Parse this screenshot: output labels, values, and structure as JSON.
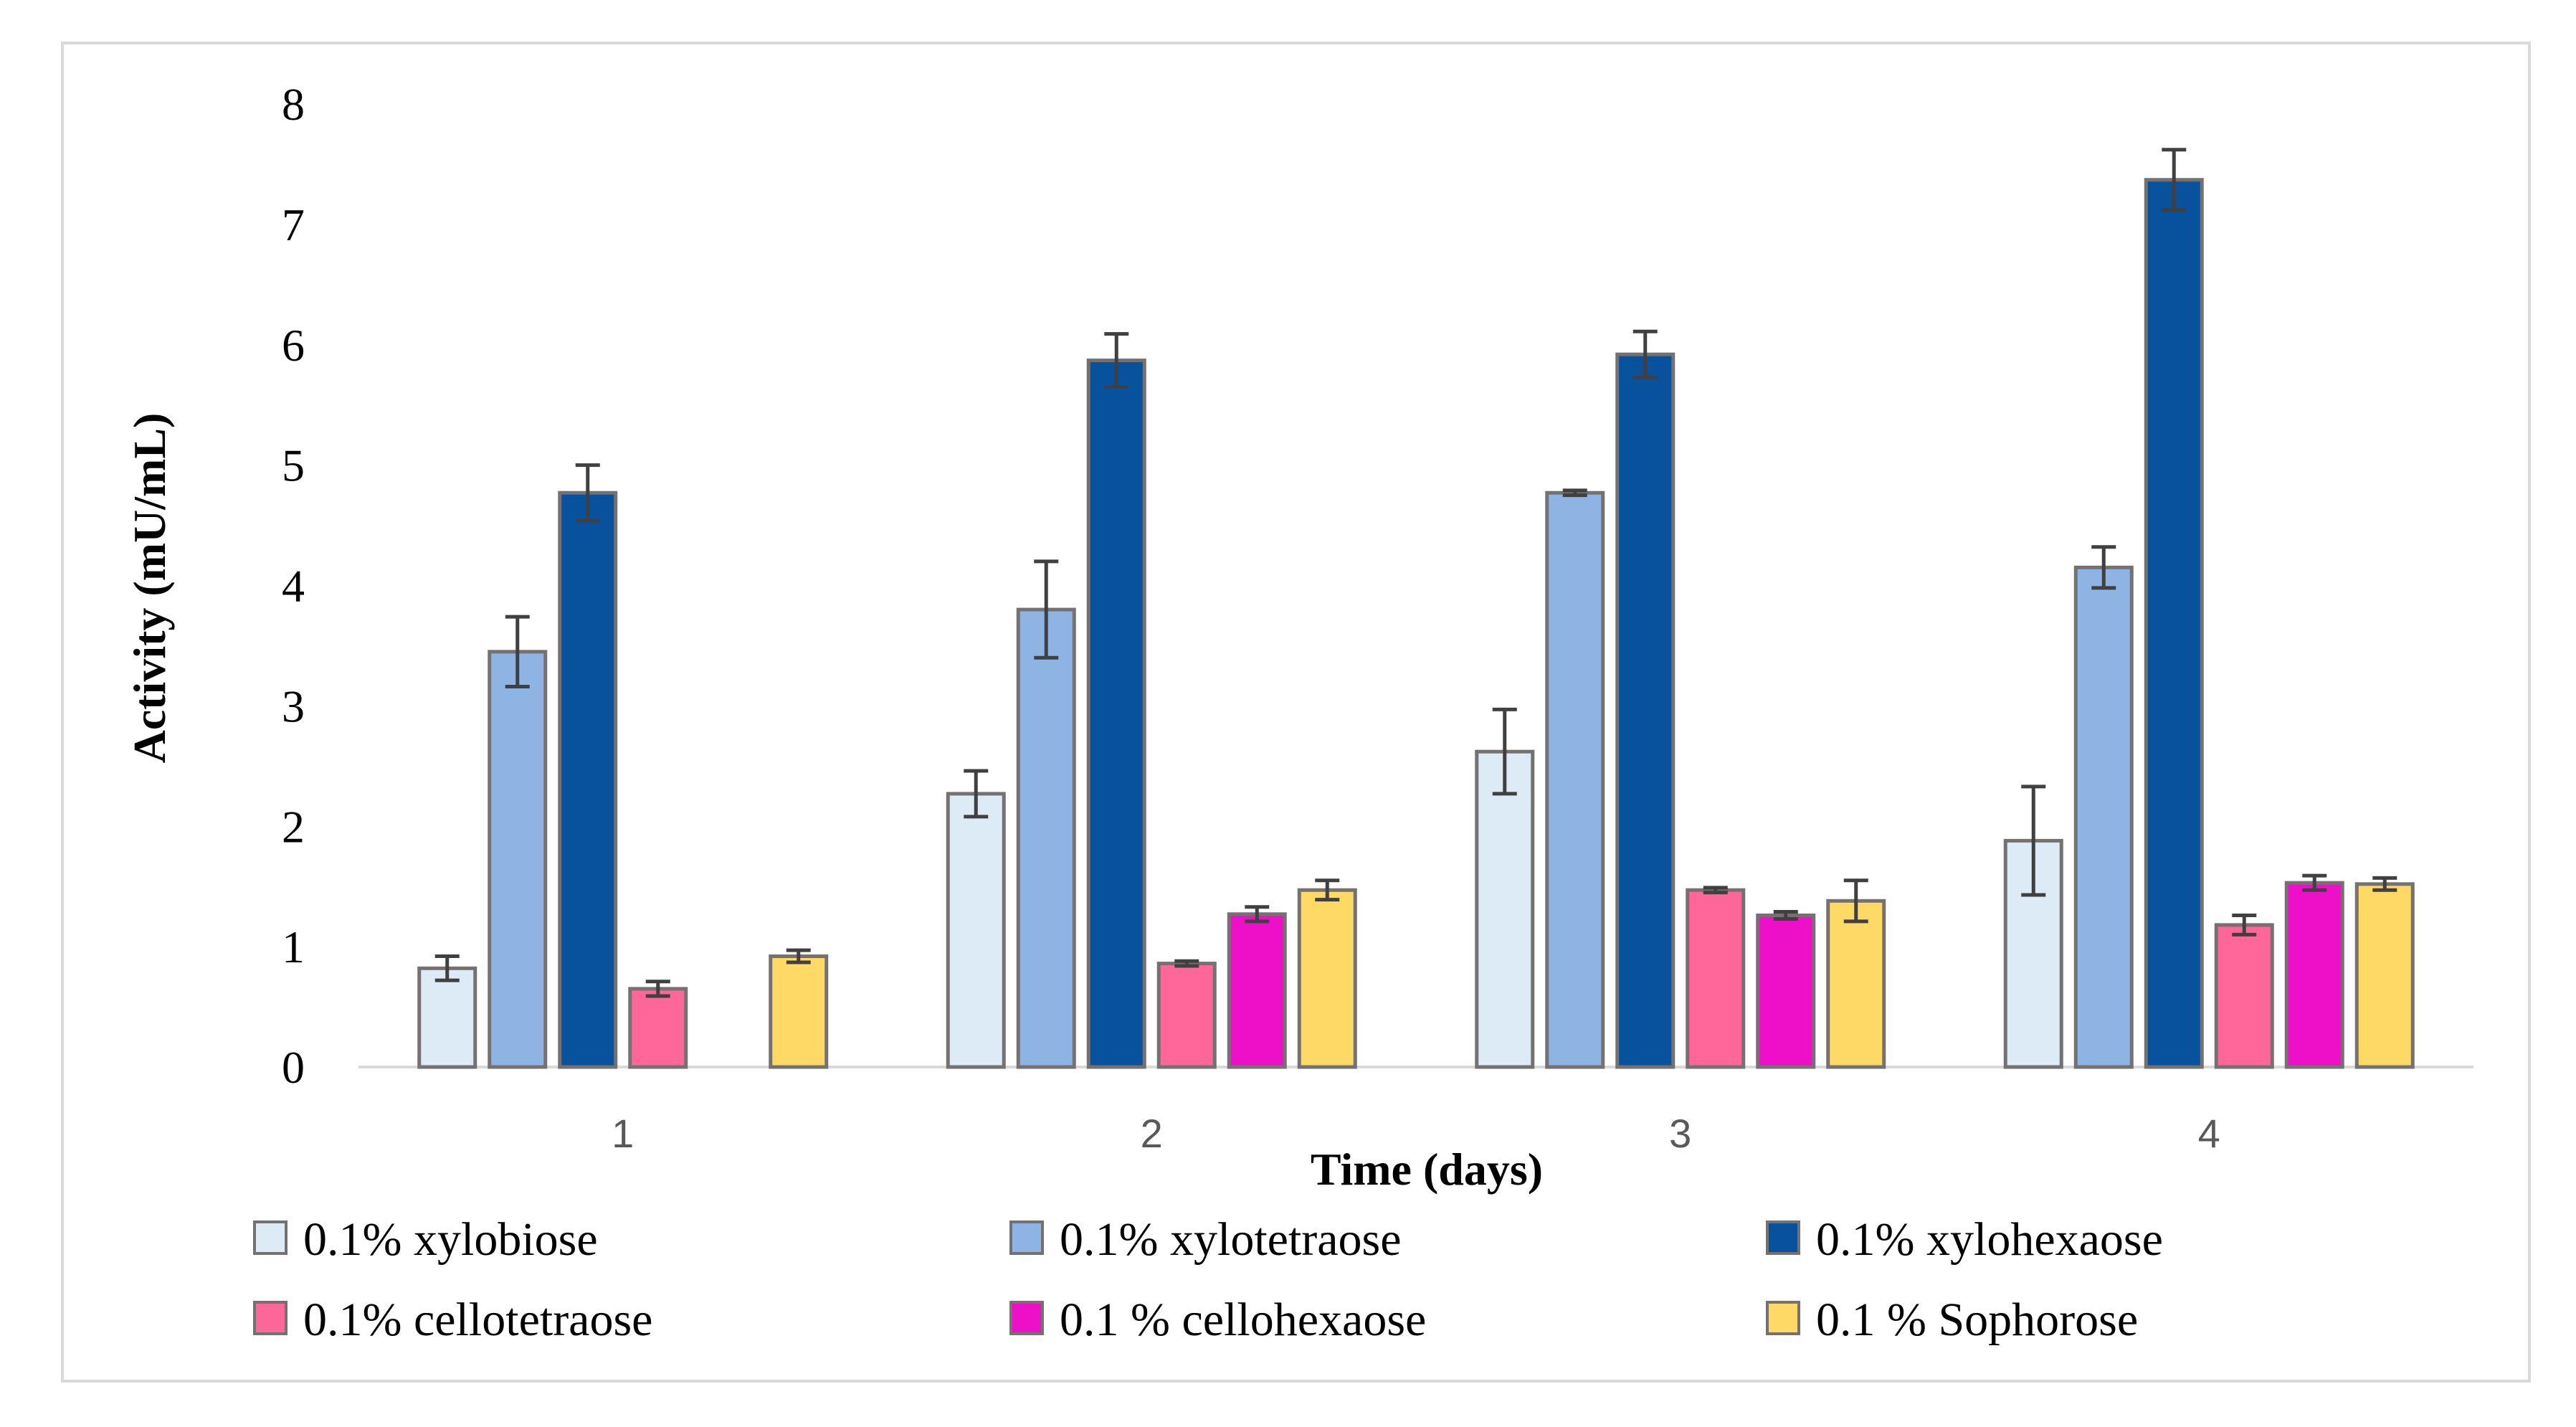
{
  "chart_data": {
    "type": "bar",
    "title": "",
    "xlabel": "Time (days)",
    "ylabel": "Activity (mU/mL)",
    "ylim": [
      0,
      8
    ],
    "yticks": [
      "0",
      "1",
      "2",
      "3",
      "4",
      "5",
      "6",
      "7",
      "8"
    ],
    "categories": [
      "1",
      "2",
      "3",
      "4"
    ],
    "legend_position": "bottom",
    "series": [
      {
        "name": "0.1% xylobiose",
        "color": "#ddebf7",
        "values": [
          0.82,
          2.27,
          2.62,
          1.88
        ],
        "errors": [
          0.1,
          0.19,
          0.35,
          0.45
        ]
      },
      {
        "name": "0.1% xylotetraose",
        "color": "#8eb4e3",
        "values": [
          3.45,
          3.8,
          4.77,
          4.15
        ],
        "errors": [
          0.29,
          0.4,
          0.02,
          0.17
        ]
      },
      {
        "name": "0.1% xylohexaose",
        "color": "#08519c",
        "values": [
          4.77,
          5.87,
          5.92,
          7.37
        ],
        "errors": [
          0.23,
          0.22,
          0.19,
          0.25
        ]
      },
      {
        "name": "0.1% cellotetraose",
        "color": "#ff6699",
        "values": [
          0.65,
          0.86,
          1.47,
          1.18
        ],
        "errors": [
          0.06,
          0.02,
          0.02,
          0.08
        ]
      },
      {
        "name": "0.1 % cellohexaose",
        "color": "#ee10c8",
        "values": [
          null,
          1.27,
          1.26,
          1.53
        ],
        "errors": [
          0,
          0.06,
          0.03,
          0.06
        ]
      },
      {
        "name": "0.1 % Sophorose",
        "color": "#ffd966",
        "values": [
          0.92,
          1.47,
          1.38,
          1.52
        ],
        "errors": [
          0.05,
          0.08,
          0.17,
          0.05
        ]
      }
    ]
  }
}
